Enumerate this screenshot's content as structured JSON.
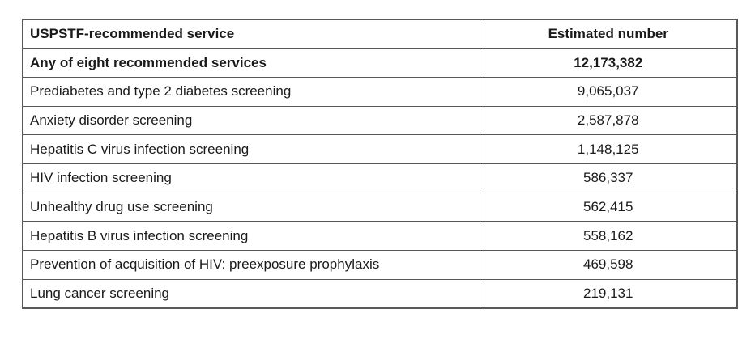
{
  "table": {
    "headers": {
      "service": "USPSTF-recommended service",
      "number": "Estimated number"
    },
    "rows": [
      {
        "service": "Any of eight recommended services",
        "number": "12,173,382",
        "emphasis": "bold"
      },
      {
        "service": "Prediabetes and type 2 diabetes screening",
        "number": "9,065,037"
      },
      {
        "service": "Anxiety disorder screening",
        "number": "2,587,878"
      },
      {
        "service": "Hepatitis C virus infection screening",
        "number": "1,148,125"
      },
      {
        "service": "HIV infection screening",
        "number": "586,337"
      },
      {
        "service": "Unhealthy drug use screening",
        "number": "562,415"
      },
      {
        "service": "Hepatitis B virus infection screening",
        "number": "558,162"
      },
      {
        "service": "Prevention of acquisition of HIV: preexposure prophylaxis",
        "number": "469,598"
      },
      {
        "service": "Lung cancer screening",
        "number": "219,131"
      }
    ],
    "colors": {
      "border": "#585858",
      "text": "#1a1a1a",
      "background": "#ffffff"
    }
  }
}
